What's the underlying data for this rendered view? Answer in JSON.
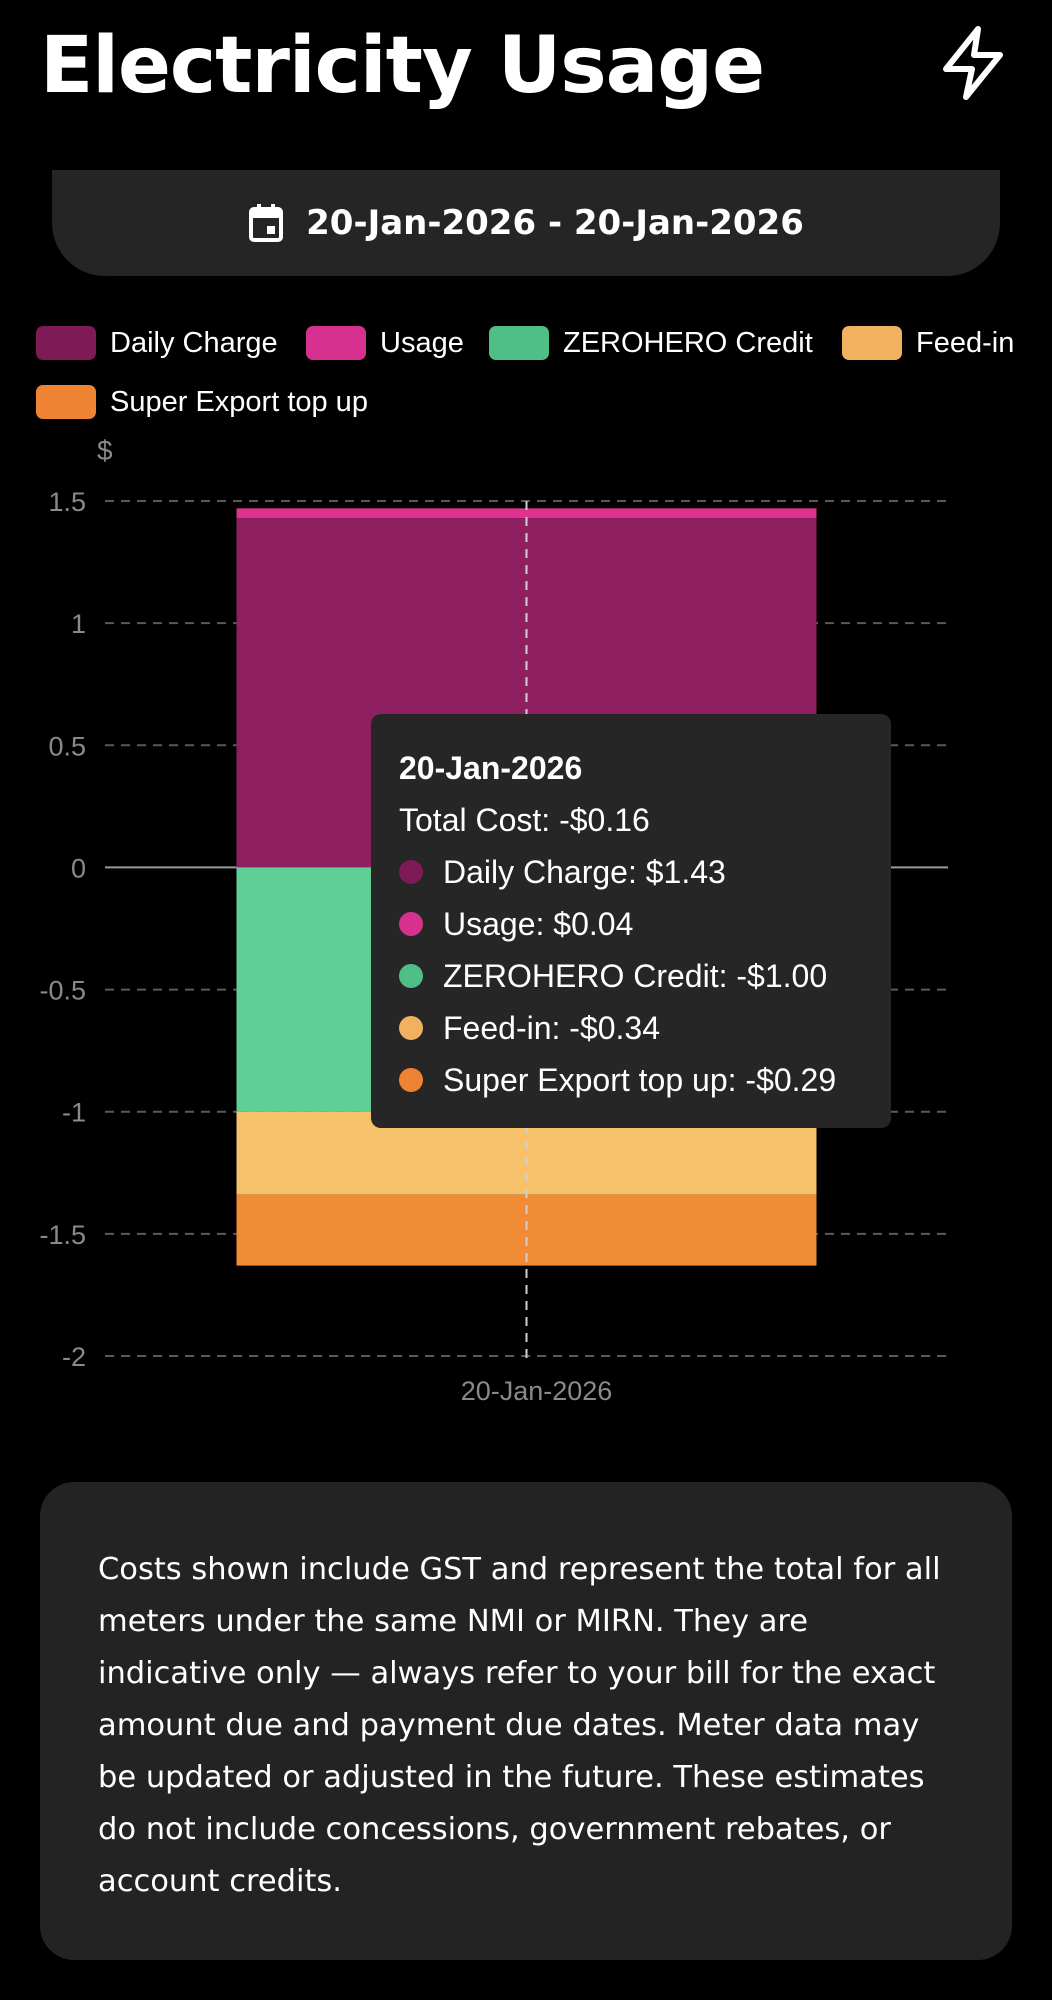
{
  "header": {
    "title": "Electricity Usage",
    "action_icon": "lightning-bolt-icon"
  },
  "date_range": {
    "icon": "calendar-icon",
    "label": "20-Jan-2026 - 20-Jan-2026"
  },
  "legend": [
    {
      "label": "Daily Charge",
      "color": "#7e1a55"
    },
    {
      "label": "Usage",
      "color": "#d6318f"
    },
    {
      "label": "ZEROHERO Credit",
      "color": "#4fbf87"
    },
    {
      "label": "Feed-in",
      "color": "#f2b15e"
    },
    {
      "label": "Super Export top up",
      "color": "#ee8433"
    }
  ],
  "chart_data": {
    "type": "bar",
    "stacked": true,
    "ylabel": "$",
    "ylim": [
      -2,
      1.5
    ],
    "yticks": [
      1.5,
      1,
      0.5,
      0,
      -0.5,
      -1,
      -1.5,
      -2
    ],
    "grid": true,
    "legend_position": "top",
    "categories": [
      "20-Jan-2026"
    ],
    "series": [
      {
        "name": "Daily Charge",
        "values": [
          1.43
        ],
        "color": "#8e1f60"
      },
      {
        "name": "Usage",
        "values": [
          0.04
        ],
        "color": "#e0338f"
      },
      {
        "name": "ZEROHERO Credit",
        "values": [
          -1.0
        ],
        "color": "#5fcf96"
      },
      {
        "name": "Feed-in",
        "values": [
          -0.34
        ],
        "color": "#f5c16a"
      },
      {
        "name": "Super Export top up",
        "values": [
          -0.29
        ],
        "color": "#f08c36"
      }
    ]
  },
  "tooltip": {
    "title": "20-Jan-2026",
    "total": "Total Cost: -$0.16",
    "rows": [
      {
        "text": "Daily Charge: $1.43",
        "color": "#7e1a55"
      },
      {
        "text": "Usage: $0.04",
        "color": "#d6318f"
      },
      {
        "text": "ZEROHERO Credit: -$1.00",
        "color": "#4fbf87"
      },
      {
        "text": "Feed-in: -$0.34",
        "color": "#f2b15e"
      },
      {
        "text": "Super Export top up: -$0.29",
        "color": "#ee8433"
      }
    ]
  },
  "disclaimer": {
    "text": "Costs shown include GST and represent the total for all meters under the same NMI or MIRN. They are indicative only — always refer to your bill for the exact amount due and payment due dates. Meter data may be updated or adjusted in the future. These estimates do not include concessions, government rebates, or account credits."
  }
}
